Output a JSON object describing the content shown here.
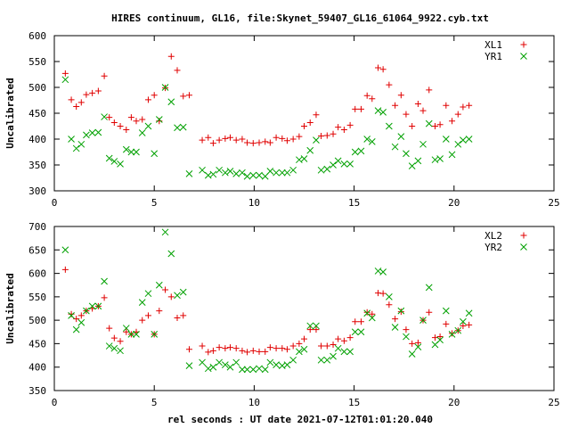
{
  "title": "HIRES continuum, GL16, file:Skynet_59407_GL16_61064_9922.cyb.txt",
  "xlabel": "rel seconds : UT date 2021-07-12T01:01:20.040",
  "chart_data": [
    {
      "type": "scatter",
      "ylabel": "Uncalibrated",
      "xlim": [
        0,
        25
      ],
      "ylim": [
        300,
        600
      ],
      "xticks": [
        "0",
        "5",
        "10",
        "15",
        "20",
        "25"
      ],
      "yticks": [
        "300",
        "350",
        "400",
        "450",
        "500",
        "550",
        "600"
      ],
      "legend": "top-right",
      "series": [
        {
          "name": "XL1",
          "color": "#e00000",
          "marker": "plus",
          "x": [
            0.55,
            0.85,
            1.1,
            1.35,
            1.6,
            1.9,
            2.2,
            2.5,
            2.75,
            3.0,
            3.3,
            3.6,
            3.85,
            4.1,
            4.4,
            4.7,
            5.0,
            5.25,
            5.55,
            5.85,
            6.15,
            6.45,
            6.75,
            7.4,
            7.7,
            7.95,
            8.25,
            8.55,
            8.8,
            9.1,
            9.4,
            9.65,
            9.95,
            10.25,
            10.55,
            10.8,
            11.1,
            11.4,
            11.65,
            11.95,
            12.25,
            12.5,
            12.8,
            13.1,
            13.35,
            13.65,
            13.95,
            14.2,
            14.5,
            14.8,
            15.05,
            15.35,
            15.65,
            15.9,
            16.2,
            16.45,
            16.75,
            17.05,
            17.35,
            17.6,
            17.9,
            18.2,
            18.45,
            18.75,
            19.05,
            19.3,
            19.6,
            19.9,
            20.2,
            20.45,
            20.75
          ],
          "y": [
            527,
            476,
            463,
            471,
            486,
            489,
            493,
            522,
            442,
            432,
            425,
            418,
            442,
            435,
            438,
            476,
            485,
            435,
            499,
            560,
            533,
            483,
            485,
            398,
            403,
            392,
            398,
            401,
            403,
            398,
            400,
            393,
            392,
            393,
            395,
            393,
            403,
            401,
            397,
            400,
            405,
            425,
            432,
            447,
            406,
            407,
            410,
            423,
            418,
            427,
            458,
            458,
            484,
            478,
            538,
            535,
            505,
            465,
            485,
            448,
            425,
            468,
            455,
            495,
            425,
            428,
            465,
            435,
            448,
            462,
            465
          ]
        },
        {
          "name": "YR1",
          "color": "#00a000",
          "marker": "cross",
          "x": [
            0.55,
            0.85,
            1.1,
            1.35,
            1.6,
            1.9,
            2.2,
            2.5,
            2.75,
            3.0,
            3.3,
            3.6,
            3.85,
            4.1,
            4.4,
            4.7,
            5.0,
            5.25,
            5.55,
            5.85,
            6.15,
            6.45,
            6.75,
            7.4,
            7.7,
            7.95,
            8.25,
            8.55,
            8.8,
            9.1,
            9.4,
            9.65,
            9.95,
            10.25,
            10.55,
            10.8,
            11.1,
            11.4,
            11.65,
            11.95,
            12.25,
            12.5,
            12.8,
            13.1,
            13.35,
            13.65,
            13.95,
            14.2,
            14.5,
            14.8,
            15.05,
            15.35,
            15.65,
            15.9,
            16.2,
            16.45,
            16.75,
            17.05,
            17.35,
            17.6,
            17.9,
            18.2,
            18.45,
            18.75,
            19.05,
            19.3,
            19.6,
            19.9,
            20.2,
            20.45,
            20.75
          ],
          "y": [
            515,
            400,
            382,
            390,
            408,
            412,
            413,
            443,
            363,
            357,
            352,
            380,
            375,
            375,
            412,
            425,
            372,
            438,
            500,
            472,
            422,
            423,
            333,
            340,
            330,
            332,
            340,
            335,
            338,
            333,
            335,
            328,
            330,
            330,
            328,
            338,
            335,
            335,
            335,
            340,
            360,
            362,
            378,
            398,
            340,
            342,
            350,
            358,
            352,
            352,
            375,
            377,
            400,
            395,
            455,
            452,
            425,
            385,
            405,
            372,
            348,
            358,
            390,
            430,
            360,
            362,
            400,
            370,
            390,
            398,
            400
          ]
        }
      ]
    },
    {
      "type": "scatter",
      "ylabel": "Uncalibrated",
      "xlim": [
        0,
        25
      ],
      "ylim": [
        350,
        700
      ],
      "xticks": [
        "0",
        "5",
        "10",
        "15",
        "20",
        "25"
      ],
      "yticks": [
        "350",
        "400",
        "450",
        "500",
        "550",
        "600",
        "650",
        "700"
      ],
      "legend": "top-right",
      "series": [
        {
          "name": "XL2",
          "color": "#e00000",
          "marker": "plus",
          "x": [
            0.55,
            0.85,
            1.1,
            1.35,
            1.6,
            1.9,
            2.2,
            2.5,
            2.75,
            3.0,
            3.3,
            3.6,
            3.85,
            4.1,
            4.4,
            4.7,
            5.0,
            5.25,
            5.55,
            5.85,
            6.15,
            6.45,
            6.75,
            7.4,
            7.7,
            7.95,
            8.25,
            8.55,
            8.8,
            9.1,
            9.4,
            9.65,
            9.95,
            10.25,
            10.55,
            10.8,
            11.1,
            11.4,
            11.65,
            11.95,
            12.25,
            12.5,
            12.8,
            13.1,
            13.35,
            13.65,
            13.95,
            14.2,
            14.5,
            14.8,
            15.05,
            15.35,
            15.65,
            15.9,
            16.2,
            16.45,
            16.75,
            17.05,
            17.35,
            17.6,
            17.9,
            18.2,
            18.45,
            18.75,
            19.05,
            19.3,
            19.6,
            19.9,
            20.2,
            20.45,
            20.75
          ],
          "y": [
            608,
            513,
            503,
            510,
            520,
            525,
            530,
            548,
            483,
            462,
            455,
            475,
            470,
            475,
            500,
            510,
            470,
            520,
            565,
            550,
            505,
            510,
            438,
            445,
            432,
            435,
            442,
            440,
            442,
            440,
            435,
            432,
            435,
            433,
            433,
            442,
            440,
            440,
            438,
            445,
            450,
            460,
            480,
            480,
            445,
            445,
            448,
            460,
            456,
            463,
            497,
            497,
            517,
            513,
            558,
            557,
            533,
            503,
            518,
            480,
            450,
            452,
            500,
            517,
            463,
            465,
            492,
            472,
            478,
            488,
            490
          ]
        },
        {
          "name": "YR2",
          "color": "#00a000",
          "marker": "cross",
          "x": [
            0.55,
            0.85,
            1.1,
            1.35,
            1.6,
            1.9,
            2.2,
            2.5,
            2.75,
            3.0,
            3.3,
            3.6,
            3.85,
            4.1,
            4.4,
            4.7,
            5.0,
            5.25,
            5.55,
            5.85,
            6.15,
            6.45,
            6.75,
            7.4,
            7.7,
            7.95,
            8.25,
            8.55,
            8.8,
            9.1,
            9.4,
            9.65,
            9.95,
            10.25,
            10.55,
            10.8,
            11.1,
            11.4,
            11.65,
            11.95,
            12.25,
            12.5,
            12.8,
            13.1,
            13.35,
            13.65,
            13.95,
            14.2,
            14.5,
            14.8,
            15.05,
            15.35,
            15.65,
            15.9,
            16.2,
            16.45,
            16.75,
            17.05,
            17.35,
            17.6,
            17.9,
            18.2,
            18.45,
            18.75,
            19.05,
            19.3,
            19.6,
            19.9,
            20.2,
            20.45,
            20.75
          ],
          "y": [
            650,
            510,
            480,
            495,
            520,
            530,
            530,
            583,
            445,
            440,
            435,
            483,
            470,
            470,
            538,
            557,
            470,
            575,
            688,
            642,
            553,
            560,
            403,
            410,
            397,
            400,
            410,
            405,
            400,
            410,
            395,
            395,
            395,
            397,
            395,
            410,
            405,
            403,
            405,
            415,
            433,
            438,
            488,
            488,
            415,
            415,
            423,
            440,
            433,
            433,
            475,
            475,
            515,
            505,
            605,
            603,
            550,
            485,
            520,
            465,
            428,
            443,
            500,
            570,
            448,
            458,
            520,
            470,
            478,
            497,
            515
          ]
        }
      ]
    }
  ]
}
